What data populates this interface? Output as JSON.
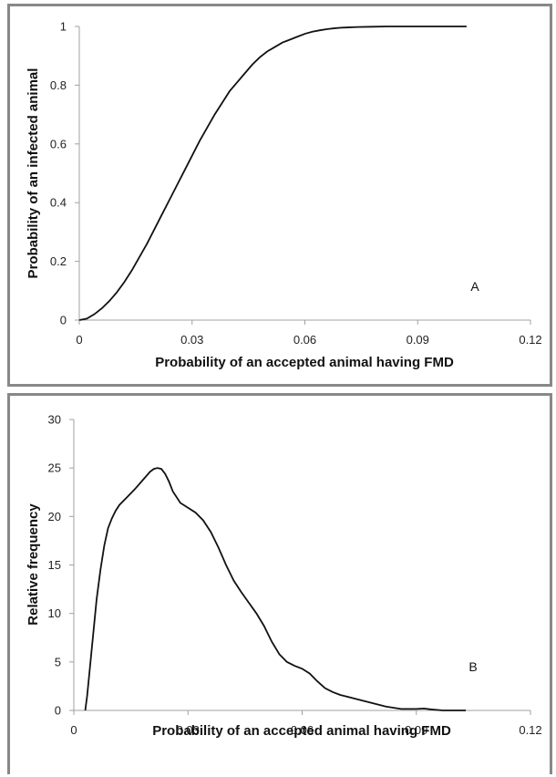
{
  "chart_data": [
    {
      "type": "line",
      "panel_label": "A",
      "xlabel": "Probability of an accepted animal having FMD",
      "ylabel": "Probability of an infected animal",
      "xlim": [
        0,
        0.12
      ],
      "ylim": [
        0,
        1
      ],
      "xticks": [
        "0",
        "0.03",
        "0.06",
        "0.09",
        "0.12"
      ],
      "yticks": [
        "0",
        "0.2",
        "0.4",
        "0.6",
        "0.8",
        "1"
      ],
      "grid": false,
      "series": [
        {
          "x": [
            0,
            0.002,
            0.004,
            0.006,
            0.008,
            0.01,
            0.012,
            0.014,
            0.016,
            0.018,
            0.02,
            0.022,
            0.024,
            0.026,
            0.028,
            0.03,
            0.032,
            0.034,
            0.036,
            0.038,
            0.04,
            0.042,
            0.044,
            0.046,
            0.048,
            0.05,
            0.052,
            0.054,
            0.056,
            0.058,
            0.06,
            0.062,
            0.064,
            0.066,
            0.068,
            0.07,
            0.074,
            0.078,
            0.082,
            0.086,
            0.09,
            0.095,
            0.1,
            0.103
          ],
          "values": [
            0,
            0.005,
            0.02,
            0.04,
            0.065,
            0.095,
            0.13,
            0.17,
            0.215,
            0.26,
            0.31,
            0.36,
            0.41,
            0.46,
            0.51,
            0.56,
            0.61,
            0.655,
            0.7,
            0.74,
            0.78,
            0.81,
            0.84,
            0.87,
            0.895,
            0.915,
            0.93,
            0.945,
            0.955,
            0.965,
            0.975,
            0.982,
            0.987,
            0.991,
            0.994,
            0.996,
            0.998,
            0.999,
            1.0,
            1.0,
            1.0,
            1.0,
            1.0,
            1.0
          ]
        }
      ]
    },
    {
      "type": "line",
      "panel_label": "B",
      "xlabel": "Probability of an accepted animal having FMD",
      "ylabel": "Relative frequency",
      "xlim": [
        0,
        0.12
      ],
      "ylim": [
        0,
        30
      ],
      "xticks": [
        "0",
        "0.03",
        "0.06",
        "0.09",
        "0.12"
      ],
      "yticks": [
        "0",
        "5",
        "10",
        "15",
        "20",
        "25",
        "30"
      ],
      "grid": false,
      "series": [
        {
          "x": [
            0.003,
            0.0035,
            0.004,
            0.005,
            0.006,
            0.007,
            0.008,
            0.009,
            0.01,
            0.011,
            0.012,
            0.014,
            0.016,
            0.018,
            0.02,
            0.021,
            0.022,
            0.023,
            0.024,
            0.025,
            0.026,
            0.028,
            0.03,
            0.032,
            0.034,
            0.036,
            0.038,
            0.04,
            0.042,
            0.044,
            0.046,
            0.048,
            0.05,
            0.052,
            0.054,
            0.056,
            0.058,
            0.06,
            0.062,
            0.064,
            0.066,
            0.068,
            0.07,
            0.074,
            0.078,
            0.082,
            0.086,
            0.09,
            0.092,
            0.094,
            0.097,
            0.1,
            0.103
          ],
          "values": [
            0,
            1.5,
            3.5,
            7.5,
            11.5,
            14.5,
            17,
            18.8,
            19.8,
            20.6,
            21.2,
            22,
            22.8,
            23.7,
            24.6,
            24.9,
            25.0,
            24.9,
            24.4,
            23.6,
            22.6,
            21.4,
            20.9,
            20.4,
            19.6,
            18.4,
            16.8,
            15.0,
            13.4,
            12.2,
            11.1,
            10.0,
            8.7,
            7.1,
            5.8,
            5.0,
            4.6,
            4.3,
            3.8,
            3.0,
            2.3,
            1.9,
            1.6,
            1.2,
            0.8,
            0.4,
            0.15,
            0.15,
            0.2,
            0.1,
            0.0,
            0.0,
            0.0
          ]
        }
      ]
    }
  ]
}
